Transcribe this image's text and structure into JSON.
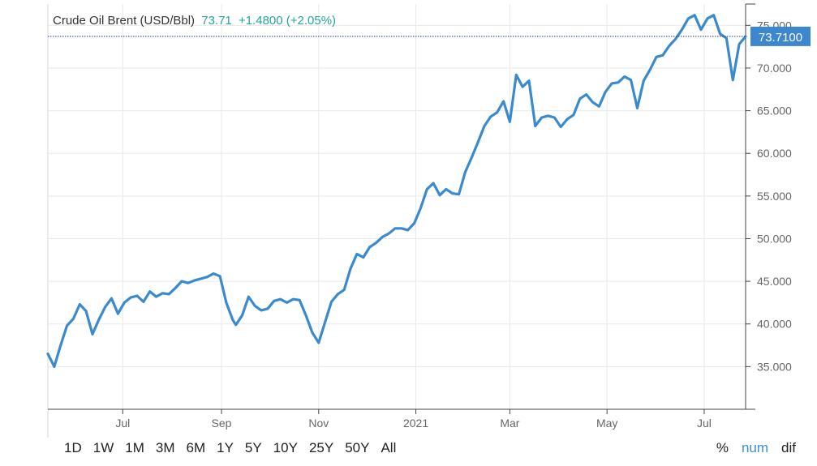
{
  "header": {
    "instrument": "Crude Oil Brent (USD/Bbl)",
    "last": "73.71",
    "change": "+1.4800 (+2.05%)"
  },
  "price_tag": "73.7100",
  "range_buttons": [
    "1D",
    "1W",
    "1M",
    "3M",
    "6M",
    "1Y",
    "5Y",
    "10Y",
    "25Y",
    "50Y",
    "All"
  ],
  "mode_buttons": [
    {
      "label": "%",
      "active": false
    },
    {
      "label": "num",
      "active": true
    },
    {
      "label": "dif",
      "active": false
    }
  ],
  "colors": {
    "line": "#3a8acd",
    "up": "#26a69a",
    "tag": "#3d87d0",
    "ref_line": "#1f2ea8"
  },
  "chart_data": {
    "type": "line",
    "title": "Crude Oil Brent (USD/Bbl)",
    "ylim": [
      30,
      77.5
    ],
    "xlim": [
      "2020-05-15",
      "2021-07-27"
    ],
    "y_ticks": [
      35,
      40,
      45,
      50,
      55,
      60,
      65,
      70,
      75
    ],
    "y_tick_labels": [
      "35.000",
      "40.000",
      "45.000",
      "50.000",
      "55.000",
      "60.000",
      "65.000",
      "70.000",
      "75.000"
    ],
    "x_ticks": [
      {
        "date": "2020-07-01",
        "label": "Jul"
      },
      {
        "date": "2020-09-01",
        "label": "Sep"
      },
      {
        "date": "2020-11-01",
        "label": "Nov"
      },
      {
        "date": "2021-01-01",
        "label": "2021"
      },
      {
        "date": "2021-03-01",
        "label": "Mar"
      },
      {
        "date": "2021-05-01",
        "label": "May"
      },
      {
        "date": "2021-07-01",
        "label": "Jul"
      }
    ],
    "grid": true,
    "last_value": 73.71,
    "series": [
      {
        "x": [
          "2020-05-15",
          "2020-05-19",
          "2020-05-23",
          "2020-05-27",
          "2020-05-31",
          "2020-06-04",
          "2020-06-08",
          "2020-06-12",
          "2020-06-16",
          "2020-06-20",
          "2020-06-24",
          "2020-06-28",
          "2020-07-02",
          "2020-07-06",
          "2020-07-10",
          "2020-07-14",
          "2020-07-18",
          "2020-07-22",
          "2020-07-26",
          "2020-07-30",
          "2020-08-03",
          "2020-08-07",
          "2020-08-11",
          "2020-08-15",
          "2020-08-19",
          "2020-08-23",
          "2020-08-27",
          "2020-08-31",
          "2020-09-04",
          "2020-09-08",
          "2020-09-10",
          "2020-09-14",
          "2020-09-18",
          "2020-09-22",
          "2020-09-26",
          "2020-09-30",
          "2020-10-04",
          "2020-10-08",
          "2020-10-12",
          "2020-10-16",
          "2020-10-20",
          "2020-10-24",
          "2020-10-28",
          "2020-11-01",
          "2020-11-05",
          "2020-11-09",
          "2020-11-13",
          "2020-11-17",
          "2020-11-21",
          "2020-11-25",
          "2020-11-29",
          "2020-12-03",
          "2020-12-07",
          "2020-12-11",
          "2020-12-15",
          "2020-12-19",
          "2020-12-23",
          "2020-12-27",
          "2020-12-31",
          "2021-01-04",
          "2021-01-08",
          "2021-01-12",
          "2021-01-16",
          "2021-01-20",
          "2021-01-24",
          "2021-01-28",
          "2021-02-01",
          "2021-02-05",
          "2021-02-09",
          "2021-02-13",
          "2021-02-17",
          "2021-02-21",
          "2021-02-25",
          "2021-03-01",
          "2021-03-05",
          "2021-03-09",
          "2021-03-13",
          "2021-03-17",
          "2021-03-21",
          "2021-03-25",
          "2021-03-29",
          "2021-04-02",
          "2021-04-06",
          "2021-04-10",
          "2021-04-14",
          "2021-04-18",
          "2021-04-22",
          "2021-04-26",
          "2021-04-30",
          "2021-05-04",
          "2021-05-08",
          "2021-05-12",
          "2021-05-16",
          "2021-05-20",
          "2021-05-24",
          "2021-05-28",
          "2021-06-01",
          "2021-06-05",
          "2021-06-09",
          "2021-06-13",
          "2021-06-17",
          "2021-06-21",
          "2021-06-25",
          "2021-06-29",
          "2021-07-03",
          "2021-07-07",
          "2021-07-11",
          "2021-07-15",
          "2021-07-19",
          "2021-07-23",
          "2021-07-27"
        ],
        "values": [
          36.5,
          35.0,
          37.5,
          39.8,
          40.6,
          42.3,
          41.5,
          38.8,
          40.5,
          42.0,
          43.0,
          41.2,
          42.5,
          43.1,
          43.3,
          42.6,
          43.8,
          43.2,
          43.6,
          43.5,
          44.2,
          45.0,
          44.8,
          45.1,
          45.3,
          45.5,
          45.9,
          45.6,
          42.5,
          40.5,
          39.9,
          41.0,
          43.2,
          42.1,
          41.6,
          41.8,
          42.7,
          42.9,
          42.5,
          42.9,
          42.8,
          41.0,
          39.0,
          37.8,
          40.2,
          42.6,
          43.5,
          44.0,
          46.5,
          48.2,
          47.8,
          49.0,
          49.5,
          50.2,
          50.6,
          51.2,
          51.2,
          51.0,
          51.8,
          53.6,
          55.8,
          56.5,
          55.1,
          55.8,
          55.3,
          55.2,
          57.8,
          59.5,
          61.3,
          63.2,
          64.3,
          64.8,
          66.1,
          63.7,
          69.2,
          67.8,
          68.5,
          63.2,
          64.2,
          64.4,
          64.2,
          63.1,
          64.0,
          64.5,
          66.4,
          66.9,
          66.0,
          65.5,
          67.2,
          68.2,
          68.3,
          69.0,
          68.6,
          65.3,
          68.5,
          69.8,
          71.3,
          71.5,
          72.6,
          73.4,
          74.5,
          75.8,
          76.2,
          74.5,
          75.8,
          76.2,
          74.0,
          73.5,
          68.6,
          72.8,
          73.7
        ]
      }
    ]
  }
}
